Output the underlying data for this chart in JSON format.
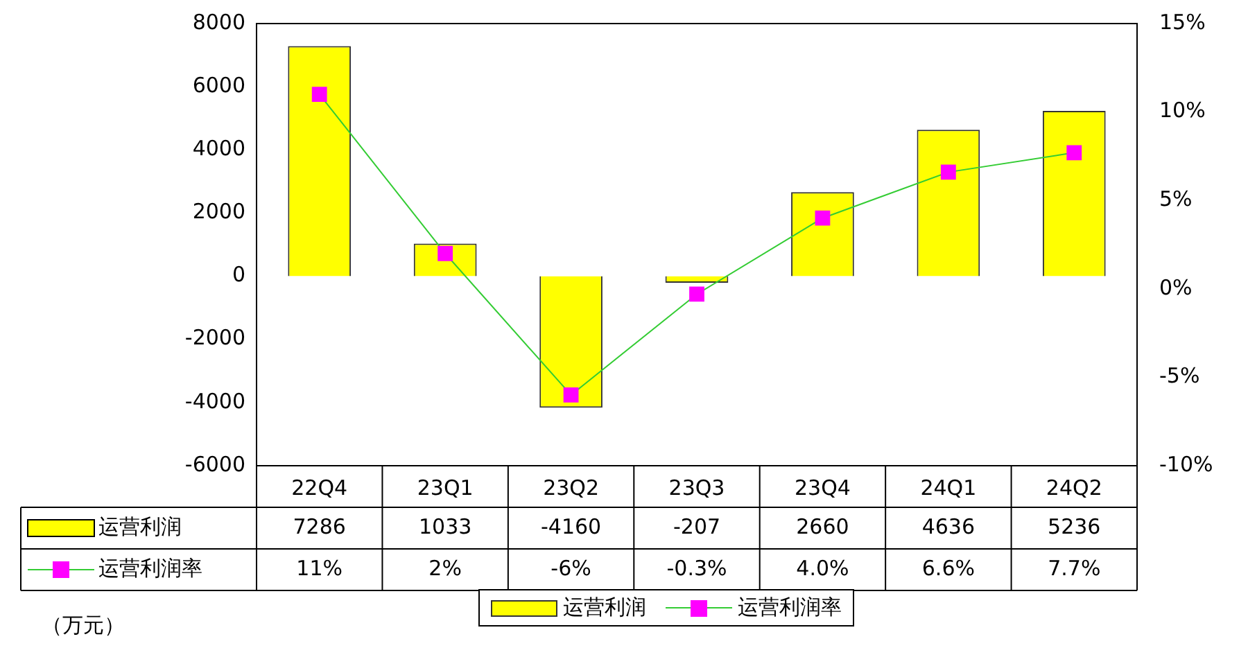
{
  "chart_data": {
    "type": "bar",
    "categories": [
      "22Q4",
      "23Q1",
      "23Q2",
      "23Q3",
      "23Q4",
      "24Q1",
      "24Q2"
    ],
    "series": [
      {
        "name": "运营利润",
        "color": "#ffff00",
        "values": [
          7286,
          1033,
          -4160,
          -207,
          2660,
          4636,
          5236
        ],
        "value_labels": [
          "7286",
          "1033",
          "-4160",
          "-207",
          "2660",
          "4636",
          "5236"
        ]
      },
      {
        "name": "运营利润率",
        "type": "line",
        "axis": "y2",
        "color": "#33cc33",
        "colors": [
          "#ff00ff",
          "#ff00ff",
          "#ff00ff",
          "#ff00ff",
          "#ff00ff",
          "#ff00ff",
          "#ff00ff"
        ],
        "marker": "square",
        "values": [
          11,
          2,
          -6,
          -0.3,
          4.0,
          6.6,
          7.7
        ],
        "value_labels": [
          "11%",
          "2%",
          "-6%",
          "-0.3%",
          "4.0%",
          "6.6%",
          "7.7%"
        ]
      }
    ],
    "ylim": [
      -6000,
      8000
    ],
    "yticks": [
      -6000,
      -4000,
      -2000,
      0,
      2000,
      4000,
      6000,
      8000
    ],
    "y2lim": [
      -10,
      15
    ],
    "y2ticks": [
      {
        "value": -10,
        "label": "-10%"
      },
      {
        "value": -5,
        "label": "-5%"
      },
      {
        "value": 0,
        "label": "0%"
      },
      {
        "value": 5,
        "label": "5%"
      },
      {
        "value": 10,
        "label": "10%"
      },
      {
        "value": 15,
        "label": "15%"
      }
    ],
    "grid": false,
    "legend": "bottom",
    "annotations": [
      "（万元）"
    ]
  }
}
